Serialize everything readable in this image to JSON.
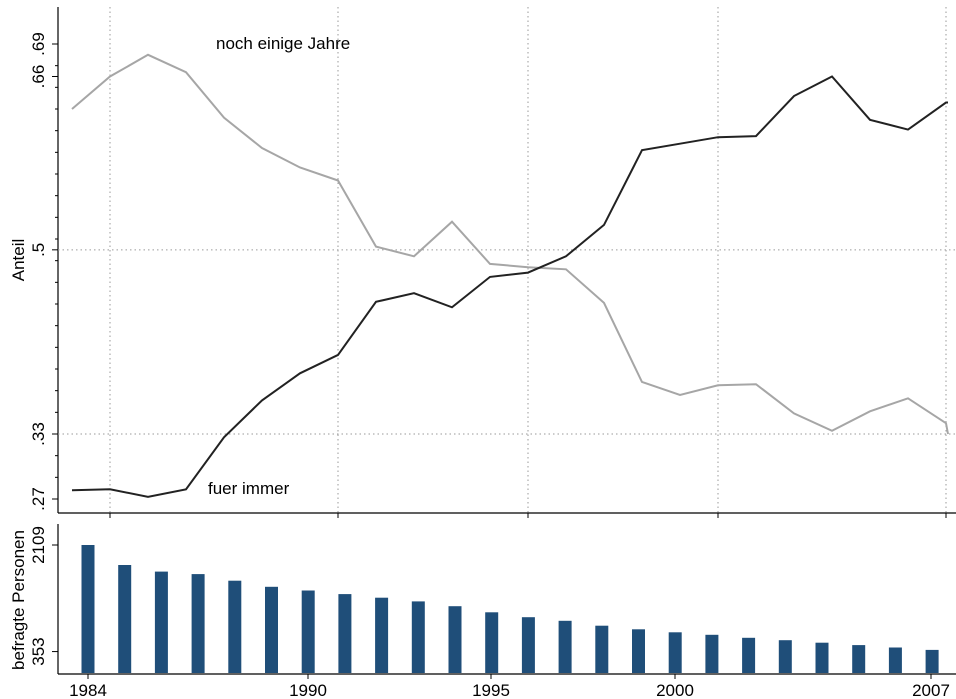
{
  "colors": {
    "series_dark": "#222222",
    "series_light": "#a6a6a6",
    "bars": "#1f4e79",
    "grid": "#9a9a9a",
    "axis": "#000000"
  },
  "chart_data": [
    {
      "type": "line",
      "ylabel": "Anteil",
      "x": [
        1983,
        1984,
        1985,
        1986,
        1987,
        1988,
        1989,
        1990,
        1991,
        1992,
        1993,
        1994,
        1995,
        1996,
        1997,
        1998,
        1999,
        2000,
        2001,
        2002,
        2003,
        2004,
        2005,
        2006,
        2007
      ],
      "ylim": [
        0.27,
        0.69
      ],
      "yticks": [
        0.27,
        0.33,
        0.5,
        0.66,
        0.69
      ],
      "ytick_labels": [
        ".27",
        ".33",
        ".5",
        ".66",
        ".69"
      ],
      "grid_x": [
        1984,
        1990,
        1995,
        2000,
        2006
      ],
      "grid_y": [
        0.33,
        0.5
      ],
      "series": [
        {
          "name": "noch einige Jahre",
          "color": "#a6a6a6",
          "values": [
            0.63,
            0.66,
            0.68,
            0.664,
            0.622,
            0.594,
            0.576,
            0.564,
            0.503,
            0.494,
            0.526,
            0.487,
            0.484,
            0.482,
            0.451,
            0.378,
            0.366,
            0.375,
            0.376,
            0.349,
            0.333,
            0.351,
            0.363,
            0.34,
            0.33
          ]
        },
        {
          "name": "fuer immer",
          "color": "#222222",
          "values": [
            0.278,
            0.279,
            0.272,
            0.279,
            0.327,
            0.361,
            0.386,
            0.403,
            0.452,
            0.46,
            0.447,
            0.475,
            0.479,
            0.494,
            0.523,
            0.592,
            0.598,
            0.604,
            0.605,
            0.642,
            0.66,
            0.62,
            0.611,
            0.636,
            0.636
          ]
        }
      ]
    },
    {
      "type": "bar",
      "ylabel": "befragte Personen",
      "x": [
        1984,
        1985,
        1986,
        1987,
        1988,
        1989,
        1990,
        1991,
        1992,
        1993,
        1994,
        1995,
        1996,
        1997,
        1998,
        1999,
        2000,
        2001,
        2002,
        2003,
        2004,
        2005,
        2006,
        2007
      ],
      "values": [
        2109,
        1780,
        1670,
        1630,
        1520,
        1420,
        1360,
        1300,
        1240,
        1180,
        1100,
        1000,
        920,
        860,
        780,
        720,
        670,
        630,
        580,
        540,
        500,
        460,
        420,
        380
      ],
      "ylim": [
        0,
        2109
      ],
      "yticks": [
        353,
        2109
      ],
      "ytick_labels": [
        "353",
        "2109"
      ],
      "xticks": [
        1984,
        1990,
        1995,
        2000,
        2007
      ],
      "xtick_labels": [
        "1984",
        "1990",
        "1995",
        "2000",
        "2007"
      ]
    }
  ]
}
